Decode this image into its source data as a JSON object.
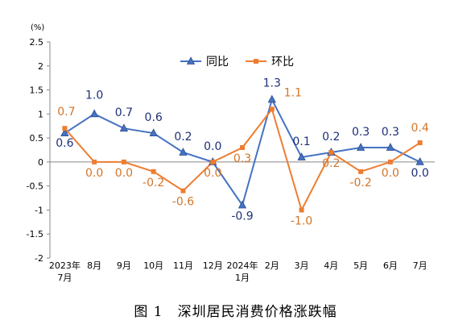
{
  "chart_data": {
    "type": "line",
    "unit_label": "(%)",
    "caption": "图 1　深圳居民消费价格涨跌幅",
    "categories": [
      "2023年\n7月",
      "8月",
      "9月",
      "10月",
      "11月",
      "12月",
      "2024年\n1月",
      "2月",
      "3月",
      "4月",
      "5月",
      "6月",
      "7月"
    ],
    "ylim": [
      -2,
      2.5
    ],
    "yticks": [
      "2.5",
      "2",
      "1.5",
      "1",
      "0.5",
      "0",
      "-0.5",
      "-1",
      "-1.5",
      "-2"
    ],
    "grid": false,
    "legend_position": "top-center",
    "series": [
      {
        "name": "同比",
        "color": "#4472C4",
        "label_color": "#1F2F7A",
        "marker": "triangle",
        "values": [
          0.6,
          1.0,
          0.7,
          0.6,
          0.2,
          0.0,
          -0.9,
          1.3,
          0.1,
          0.2,
          0.3,
          0.3,
          0.0
        ],
        "labels": [
          "0.6",
          "1.0",
          "0.7",
          "0.6",
          "0.2",
          "0.0",
          "-0.9",
          "1.3",
          "0.1",
          "0.2",
          "0.3",
          "0.3",
          "0.0"
        ]
      },
      {
        "name": "环比",
        "color": "#ED7D31",
        "label_color": "#D2762A",
        "marker": "square",
        "values": [
          0.7,
          0.0,
          0.0,
          -0.2,
          -0.6,
          0.0,
          0.3,
          1.1,
          -1.0,
          0.2,
          -0.2,
          0.0,
          0.4
        ],
        "labels": [
          "0.7",
          "0.0",
          "0.0",
          "-0.2",
          "-0.6",
          "0.0",
          "0.3",
          "1.1",
          "-1.0",
          "0.2",
          "-0.2",
          "0.0",
          "0.4"
        ]
      }
    ]
  }
}
